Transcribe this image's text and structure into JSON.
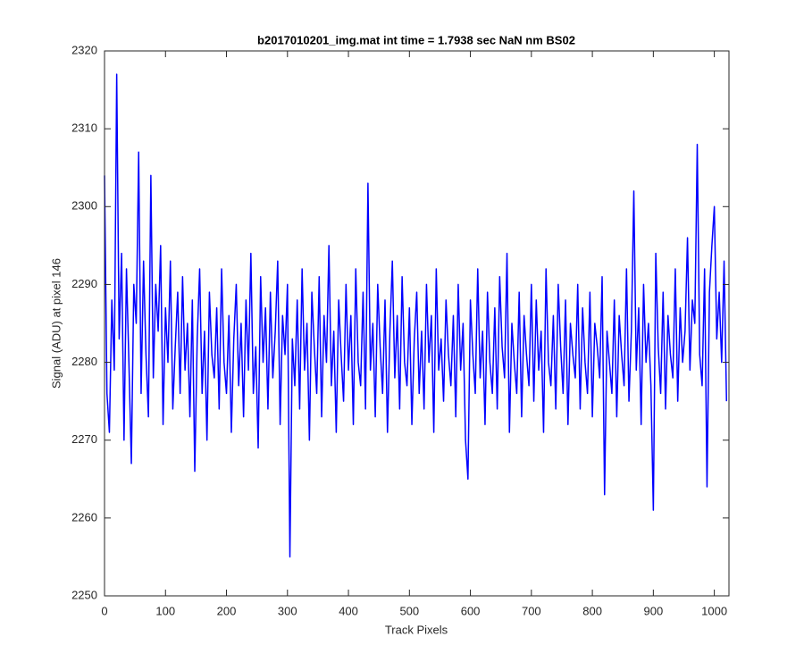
{
  "chart_data": {
    "type": "line",
    "title": "b2017010201_img.mat int time = 1.7938 sec  NaN nm BS02",
    "x_label": "Track Pixels",
    "y_label": "Signal (ADU) at pixel 146",
    "xlim": [
      0,
      1024
    ],
    "ylim": [
      2250,
      2320
    ],
    "xticks": [
      0,
      100,
      200,
      300,
      400,
      500,
      600,
      700,
      800,
      900,
      1000
    ],
    "yticks": [
      2250,
      2260,
      2270,
      2280,
      2290,
      2300,
      2310,
      2320
    ],
    "grid": false,
    "series": [
      {
        "color": "#0000ff",
        "x": [
          0,
          4,
          8,
          12,
          16,
          20,
          24,
          28,
          32,
          36,
          40,
          44,
          48,
          52,
          56,
          60,
          64,
          68,
          72,
          76,
          80,
          84,
          88,
          92,
          96,
          100,
          104,
          108,
          112,
          116,
          120,
          124,
          128,
          132,
          136,
          140,
          144,
          148,
          152,
          156,
          160,
          164,
          168,
          172,
          176,
          180,
          184,
          188,
          192,
          196,
          200,
          204,
          208,
          212,
          216,
          220,
          224,
          228,
          232,
          236,
          240,
          244,
          248,
          252,
          256,
          260,
          264,
          268,
          272,
          276,
          280,
          284,
          288,
          292,
          296,
          300,
          304,
          308,
          312,
          316,
          320,
          324,
          328,
          332,
          336,
          340,
          344,
          348,
          352,
          356,
          360,
          364,
          368,
          372,
          376,
          380,
          384,
          388,
          392,
          396,
          400,
          404,
          408,
          412,
          416,
          420,
          424,
          428,
          432,
          436,
          440,
          444,
          448,
          452,
          456,
          460,
          464,
          468,
          472,
          476,
          480,
          484,
          488,
          492,
          496,
          500,
          504,
          508,
          512,
          516,
          520,
          524,
          528,
          532,
          536,
          540,
          544,
          548,
          552,
          556,
          560,
          564,
          568,
          572,
          576,
          580,
          584,
          588,
          592,
          596,
          600,
          604,
          608,
          612,
          616,
          620,
          624,
          628,
          632,
          636,
          640,
          644,
          648,
          652,
          656,
          660,
          664,
          668,
          672,
          676,
          680,
          684,
          688,
          692,
          696,
          700,
          704,
          708,
          712,
          716,
          720,
          724,
          728,
          732,
          736,
          740,
          744,
          748,
          752,
          756,
          760,
          764,
          768,
          772,
          776,
          780,
          784,
          788,
          792,
          796,
          800,
          804,
          808,
          812,
          816,
          820,
          824,
          828,
          832,
          836,
          840,
          844,
          848,
          852,
          856,
          860,
          864,
          868,
          872,
          876,
          880,
          884,
          888,
          892,
          896,
          900,
          904,
          908,
          912,
          916,
          920,
          924,
          928,
          932,
          936,
          940,
          944,
          948,
          952,
          956,
          960,
          964,
          968,
          972,
          976,
          980,
          984,
          988,
          992,
          996,
          1000,
          1004,
          1008,
          1012,
          1016,
          1020
        ],
        "values": [
          2304,
          2276,
          2271,
          2288,
          2279,
          2317,
          2283,
          2294,
          2270,
          2292,
          2280,
          2267,
          2290,
          2285,
          2307,
          2276,
          2293,
          2281,
          2273,
          2304,
          2278,
          2290,
          2284,
          2295,
          2272,
          2287,
          2280,
          2293,
          2274,
          2282,
          2289,
          2276,
          2291,
          2279,
          2285,
          2273,
          2288,
          2266,
          2283,
          2292,
          2276,
          2284,
          2270,
          2289,
          2281,
          2278,
          2287,
          2274,
          2292,
          2280,
          2276,
          2286,
          2271,
          2283,
          2290,
          2277,
          2285,
          2273,
          2288,
          2279,
          2294,
          2276,
          2282,
          2269,
          2291,
          2280,
          2287,
          2274,
          2289,
          2278,
          2284,
          2293,
          2272,
          2286,
          2281,
          2290,
          2255,
          2283,
          2277,
          2288,
          2274,
          2292,
          2279,
          2285,
          2270,
          2289,
          2282,
          2276,
          2291,
          2273,
          2286,
          2280,
          2295,
          2277,
          2284,
          2271,
          2288,
          2281,
          2275,
          2290,
          2279,
          2286,
          2272,
          2292,
          2280,
          2277,
          2289,
          2274,
          2303,
          2279,
          2285,
          2273,
          2290,
          2282,
          2276,
          2288,
          2271,
          2284,
          2293,
          2278,
          2286,
          2274,
          2291,
          2280,
          2277,
          2287,
          2272,
          2283,
          2289,
          2276,
          2284,
          2274,
          2290,
          2280,
          2286,
          2271,
          2292,
          2279,
          2283,
          2275,
          2288,
          2281,
          2277,
          2286,
          2273,
          2290,
          2279,
          2285,
          2270,
          2265,
          2288,
          2281,
          2276,
          2292,
          2278,
          2284,
          2272,
          2289,
          2280,
          2276,
          2287,
          2274,
          2291,
          2282,
          2278,
          2294,
          2271,
          2285,
          2280,
          2276,
          2289,
          2273,
          2286,
          2281,
          2277,
          2290,
          2275,
          2288,
          2279,
          2284,
          2271,
          2292,
          2280,
          2277,
          2286,
          2274,
          2290,
          2282,
          2276,
          2288,
          2272,
          2285,
          2281,
          2278,
          2290,
          2274,
          2287,
          2280,
          2276,
          2289,
          2273,
          2285,
          2282,
          2278,
          2291,
          2263,
          2284,
          2280,
          2276,
          2288,
          2273,
          2286,
          2281,
          2277,
          2292,
          2275,
          2284,
          2302,
          2279,
          2287,
          2272,
          2290,
          2280,
          2285,
          2277,
          2261,
          2294,
          2282,
          2276,
          2289,
          2274,
          2286,
          2281,
          2278,
          2292,
          2275,
          2287,
          2280,
          2284,
          2296,
          2279,
          2288,
          2285,
          2308,
          2281,
          2277,
          2292,
          2264,
          2289,
          2295,
          2300,
          2283,
          2289,
          2280,
          2293,
          2275
        ]
      }
    ]
  }
}
